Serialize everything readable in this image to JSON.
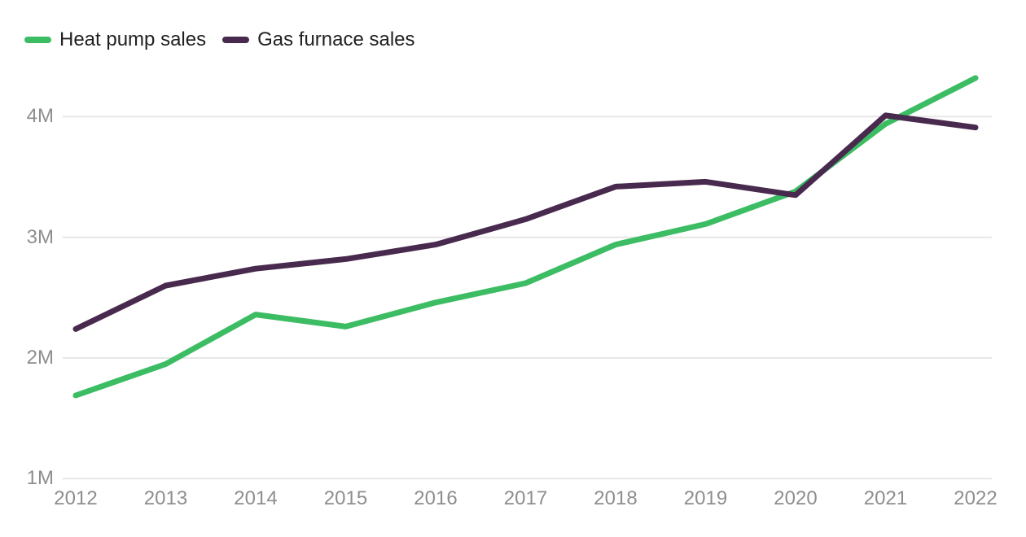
{
  "chart_data": {
    "type": "line",
    "title": "",
    "xlabel": "",
    "ylabel": "",
    "x": [
      "2012",
      "2013",
      "2014",
      "2015",
      "2016",
      "2017",
      "2018",
      "2019",
      "2020",
      "2021",
      "2022"
    ],
    "series": [
      {
        "name": "Heat pump sales",
        "color": "#3cbd64",
        "values": [
          1.69,
          1.95,
          2.36,
          2.26,
          2.46,
          2.62,
          2.94,
          3.11,
          3.38,
          3.94,
          4.32
        ]
      },
      {
        "name": "Gas furnace sales",
        "color": "#492a4f",
        "values": [
          2.24,
          2.6,
          2.74,
          2.82,
          2.94,
          3.15,
          3.42,
          3.46,
          3.35,
          4.01,
          3.91
        ]
      }
    ],
    "unit": "M",
    "y_ticks": [
      {
        "value": 1,
        "label": "1M"
      },
      {
        "value": 2,
        "label": "2M"
      },
      {
        "value": 3,
        "label": "3M"
      },
      {
        "value": 4,
        "label": "4M"
      }
    ],
    "ylim": [
      1,
      4.5
    ],
    "grid": true,
    "legend_position": "top-left",
    "colors": {
      "grid": "#e7e7e7",
      "axis_text": "#8e8e8e",
      "legend_text": "#212124",
      "background": "#ffffff"
    }
  }
}
